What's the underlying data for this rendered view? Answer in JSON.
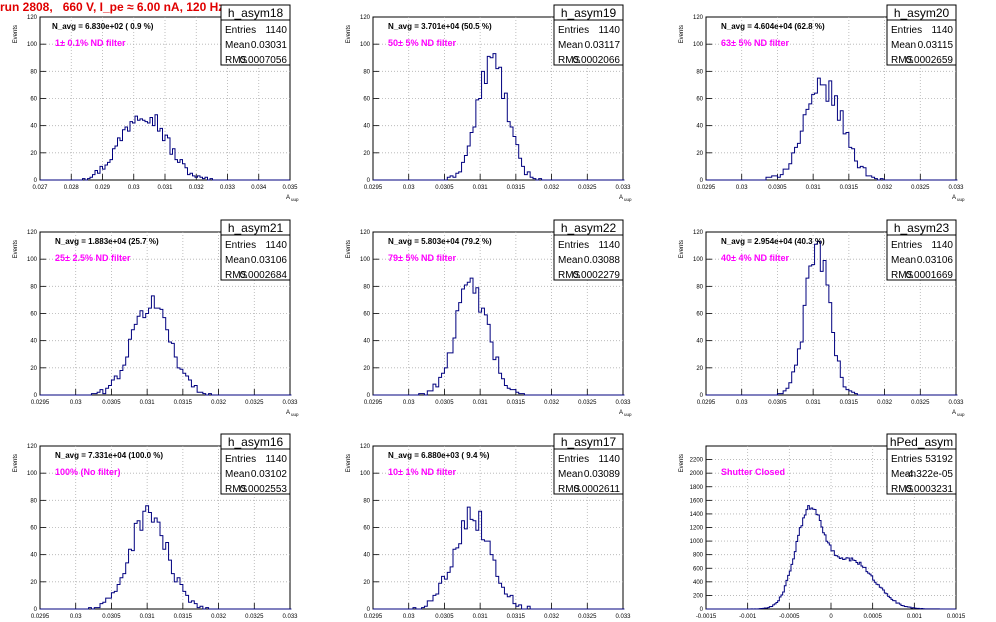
{
  "run_title": "run 2808,   660 V, I_pe ≈ 6.00 nA, 120 Hz",
  "chart_data": [
    {
      "type": "histogram",
      "title": "h_asym18",
      "annotation": "N_avg = 6.830e+02 ( 0.9 %)",
      "filter_label": "1± 0.1% ND filter",
      "stats": {
        "Entries": "1140",
        "Mean": "0.03031",
        "RMS": "0.0007056"
      },
      "xlabel": "A_uup",
      "ylabel": "Events",
      "xlim": [
        0.027,
        0.035
      ],
      "ylim": [
        0,
        120
      ],
      "xticks": [
        "0.027",
        "0.028",
        "0.029",
        "0.03",
        "0.031",
        "0.032",
        "0.033",
        "0.034",
        "0.035"
      ],
      "yticks": [
        "0",
        "20",
        "40",
        "60",
        "80",
        "100",
        "120"
      ],
      "mean": 0.03031,
      "rms": 0.0007056,
      "entries": 1140,
      "bin_width": 8e-05
    },
    {
      "type": "histogram",
      "title": "h_asym19",
      "annotation": "N_avg = 3.701e+04 (50.5 %)",
      "filter_label": "50± 5% ND filter",
      "stats": {
        "Entries": "1140",
        "Mean": "0.03117",
        "RMS": "0.0002066"
      },
      "xlabel": "A_uup",
      "ylabel": "Events",
      "xlim": [
        0.0295,
        0.033
      ],
      "ylim": [
        0,
        120
      ],
      "xticks": [
        "0.0295",
        "0.03",
        "0.0305",
        "0.031",
        "0.0315",
        "0.032",
        "0.0325",
        "0.033"
      ],
      "yticks": [
        "0",
        "20",
        "40",
        "60",
        "80",
        "100",
        "120"
      ],
      "mean": 0.03117,
      "rms": 0.0002066,
      "entries": 1140,
      "bin_width": 4e-05
    },
    {
      "type": "histogram",
      "title": "h_asym20",
      "annotation": "N_avg = 4.604e+04 (62.8 %)",
      "filter_label": "63± 5% ND filter",
      "stats": {
        "Entries": "1140",
        "Mean": "0.03115",
        "RMS": "0.0002659"
      },
      "xlabel": "A_uup",
      "ylabel": "Events",
      "xlim": [
        0.0295,
        0.033
      ],
      "ylim": [
        0,
        120
      ],
      "xticks": [
        "0.0295",
        "0.03",
        "0.0305",
        "0.031",
        "0.0315",
        "0.032",
        "0.0325",
        "0.033"
      ],
      "yticks": [
        "0",
        "20",
        "40",
        "60",
        "80",
        "100",
        "120"
      ],
      "mean": 0.03115,
      "rms": 0.0002659,
      "entries": 1140,
      "bin_width": 4e-05
    },
    {
      "type": "histogram",
      "title": "h_asym21",
      "annotation": "N_avg = 1.883e+04 (25.7 %)",
      "filter_label": "25± 2.5% ND filter",
      "stats": {
        "Entries": "1140",
        "Mean": "0.03106",
        "RMS": "0.0002684"
      },
      "xlabel": "A_uup",
      "ylabel": "Events",
      "xlim": [
        0.0295,
        0.033
      ],
      "ylim": [
        0,
        120
      ],
      "xticks": [
        "0.0295",
        "0.03",
        "0.0305",
        "0.031",
        "0.0315",
        "0.032",
        "0.0325",
        "0.033"
      ],
      "yticks": [
        "0",
        "20",
        "40",
        "60",
        "80",
        "100",
        "120"
      ],
      "mean": 0.03106,
      "rms": 0.0002684,
      "entries": 1140,
      "bin_width": 4e-05
    },
    {
      "type": "histogram",
      "title": "h_asym22",
      "annotation": "N_avg = 5.803e+04 (79.2 %)",
      "filter_label": "79± 5% ND filter",
      "stats": {
        "Entries": "1140",
        "Mean": "0.03088",
        "RMS": "0.0002279"
      },
      "xlabel": "A_uup",
      "ylabel": "Events",
      "xlim": [
        0.0295,
        0.033
      ],
      "ylim": [
        0,
        120
      ],
      "xticks": [
        "0.0295",
        "0.03",
        "0.0305",
        "0.031",
        "0.0315",
        "0.032",
        "0.0325",
        "0.033"
      ],
      "yticks": [
        "0",
        "20",
        "40",
        "60",
        "80",
        "100",
        "120"
      ],
      "mean": 0.03088,
      "rms": 0.0002279,
      "entries": 1140,
      "bin_width": 4e-05
    },
    {
      "type": "histogram",
      "title": "h_asym23",
      "annotation": "N_avg = 2.954e+04 (40.3 %)",
      "filter_label": "40± 4% ND filter",
      "stats": {
        "Entries": "1140",
        "Mean": "0.03106",
        "RMS": "0.0001669"
      },
      "xlabel": "A_uup",
      "ylabel": "Events",
      "xlim": [
        0.0295,
        0.033
      ],
      "ylim": [
        0,
        120
      ],
      "xticks": [
        "0.0295",
        "0.03",
        "0.0305",
        "0.031",
        "0.0315",
        "0.032",
        "0.0325",
        "0.033"
      ],
      "yticks": [
        "0",
        "20",
        "40",
        "60",
        "80",
        "100",
        "120"
      ],
      "mean": 0.03106,
      "rms": 0.0001669,
      "entries": 1140,
      "bin_width": 4e-05
    },
    {
      "type": "histogram",
      "title": "h_asym16",
      "annotation": "N_avg = 7.331e+04 (100.0 %)",
      "filter_label": "100% (No filter)",
      "stats": {
        "Entries": "1140",
        "Mean": "0.03102",
        "RMS": "0.0002553"
      },
      "xlabel": "A_uup",
      "ylabel": "Events",
      "xlim": [
        0.0295,
        0.033
      ],
      "ylim": [
        0,
        120
      ],
      "xticks": [
        "0.0295",
        "0.03",
        "0.0305",
        "0.031",
        "0.0315",
        "0.032",
        "0.0325",
        "0.033"
      ],
      "yticks": [
        "0",
        "20",
        "40",
        "60",
        "80",
        "100",
        "120"
      ],
      "mean": 0.03102,
      "rms": 0.0002553,
      "entries": 1140,
      "bin_width": 4e-05
    },
    {
      "type": "histogram",
      "title": "h_asym17",
      "annotation": "N_avg = 6.880e+03 ( 9.4 %)",
      "filter_label": "10± 1% ND filter",
      "stats": {
        "Entries": "1140",
        "Mean": "0.03089",
        "RMS": "0.0002611"
      },
      "xlabel": "A_uup",
      "ylabel": "Events",
      "xlim": [
        0.0295,
        0.033
      ],
      "ylim": [
        0,
        120
      ],
      "xticks": [
        "0.0295",
        "0.03",
        "0.0305",
        "0.031",
        "0.0315",
        "0.032",
        "0.0325",
        "0.033"
      ],
      "yticks": [
        "0",
        "20",
        "40",
        "60",
        "80",
        "100",
        "120"
      ],
      "mean": 0.03089,
      "rms": 0.0002611,
      "entries": 1140,
      "bin_width": 4e-05
    },
    {
      "type": "histogram",
      "title": "hPed_asym",
      "annotation": "",
      "filter_label": "Shutter Closed",
      "stats": {
        "Entries": "53192",
        "Mean": "-4.322e-05",
        "RMS": "0.0003231"
      },
      "xlabel": "",
      "ylabel": "Events",
      "xlim": [
        -0.0015,
        0.0015
      ],
      "ylim": [
        0,
        2400
      ],
      "xticks": [
        "-0.0015",
        "-0.001",
        "-0.0005",
        "0",
        "0.0005",
        "0.001",
        "0.0015"
      ],
      "yticks": [
        "0",
        "200",
        "400",
        "600",
        "800",
        "1000",
        "1200",
        "1400",
        "1600",
        "1800",
        "2000",
        "2200"
      ],
      "mean": -4.322e-05,
      "rms": 0.0003231,
      "entries": 53192,
      "bin_width": 2e-05,
      "shape": "bimodal"
    }
  ],
  "colors": {
    "histogram": "#00007f",
    "filter_label": "#ff00ff",
    "title": "#e00000",
    "grid": "#b0b0b0",
    "axis": "#000000"
  }
}
